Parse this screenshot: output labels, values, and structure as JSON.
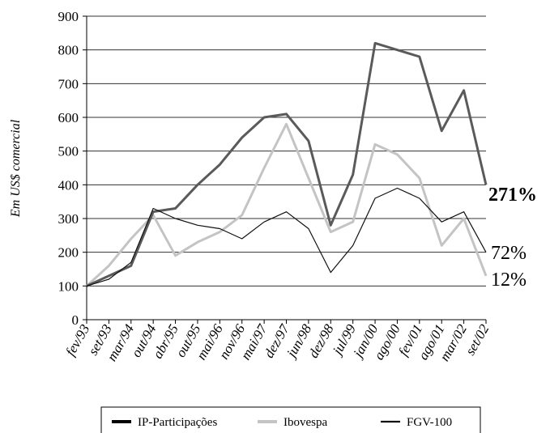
{
  "chart_data": {
    "type": "line",
    "y_label": "Em US$ comercial",
    "categories": [
      "fev/93",
      "set/93",
      "mar/94",
      "out/94",
      "abr/95",
      "out/95",
      "mai/96",
      "nov/96",
      "mai/97",
      "dez/97",
      "jun/98",
      "dez/98",
      "jul/99",
      "jan/00",
      "ago/00",
      "fev/01",
      "ago/01",
      "mar/02",
      "set/02"
    ],
    "series": [
      {
        "name": "IP-Participações",
        "color": "#5a5a5a",
        "values": [
          100,
          130,
          160,
          320,
          330,
          400,
          460,
          540,
          600,
          610,
          530,
          280,
          430,
          820,
          800,
          780,
          560,
          680,
          400
        ]
      },
      {
        "name": "Ibovespa",
        "color": "#c4c4c4",
        "values": [
          100,
          160,
          240,
          310,
          190,
          230,
          260,
          310,
          450,
          580,
          420,
          260,
          290,
          520,
          490,
          420,
          220,
          300,
          130
        ]
      },
      {
        "name": "FGV-100",
        "color": "#111111",
        "values": [
          100,
          120,
          170,
          330,
          300,
          280,
          270,
          240,
          290,
          320,
          270,
          140,
          220,
          360,
          390,
          360,
          290,
          320,
          200
        ]
      }
    ],
    "annotations": [
      "271%",
      "72%",
      "12%"
    ],
    "ylim": [
      0,
      900
    ],
    "yticks": [
      0,
      100,
      200,
      300,
      400,
      500,
      600,
      700,
      800,
      900
    ],
    "grid": true
  }
}
